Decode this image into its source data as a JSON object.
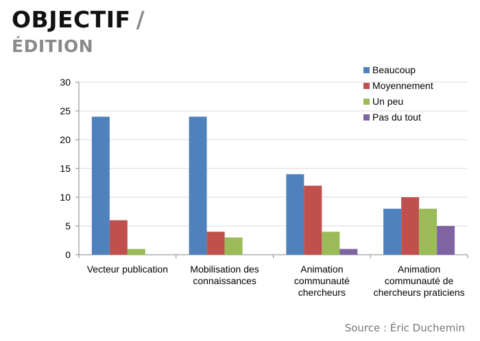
{
  "header": {
    "title": "OBJECTIF",
    "title_slash": "/",
    "subtitle": "ÉDITION"
  },
  "source": "Source : Éric Duchemin",
  "chart_data": {
    "type": "bar",
    "categories": [
      [
        "Vecteur publication"
      ],
      [
        "Mobilisation des",
        "connaissances"
      ],
      [
        "Animation",
        "communauté",
        "chercheurs"
      ],
      [
        "Animation",
        "communauté de",
        "chercheurs praticiens"
      ]
    ],
    "series": [
      {
        "name": "Beaucoup",
        "color": "#4f81bd",
        "values": [
          24,
          24,
          14,
          8
        ]
      },
      {
        "name": "Moyennement",
        "color": "#c0504d",
        "values": [
          6,
          4,
          12,
          10
        ]
      },
      {
        "name": "Un peu",
        "color": "#9bbb59",
        "values": [
          1,
          3,
          4,
          8
        ]
      },
      {
        "name": "Pas du tout",
        "color": "#8064a2",
        "values": [
          0,
          0,
          1,
          5
        ]
      }
    ],
    "ylim": [
      0,
      30
    ],
    "yticks": [
      0,
      5,
      10,
      15,
      20,
      25,
      30
    ],
    "grid": true,
    "legend": "top-right"
  }
}
